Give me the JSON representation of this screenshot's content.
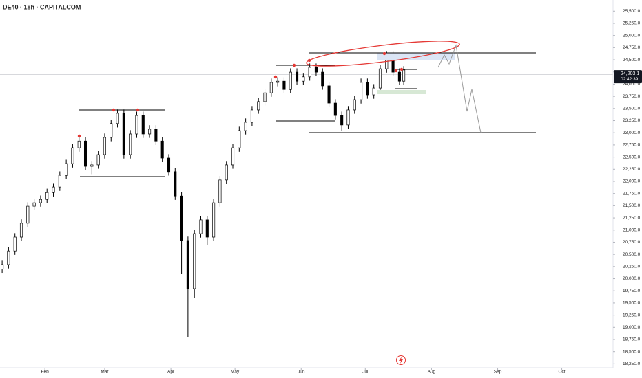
{
  "chart_data": {
    "type": "candlestick",
    "title": "DE40 · 18h · CAPITALCOM",
    "up_color": "#ffffff",
    "down_color": "#000000",
    "edge_color": "#000000",
    "x": [
      12,
      15,
      18,
      21,
      24,
      27,
      30,
      33,
      36,
      39,
      42,
      45,
      48,
      51,
      54,
      57,
      60,
      63,
      66,
      69,
      72,
      75,
      78,
      81,
      84,
      87,
      90,
      93,
      96,
      99,
      102,
      105,
      108,
      111,
      114,
      117,
      120,
      123,
      126,
      129,
      132,
      135,
      138,
      141,
      144,
      147,
      150,
      153,
      156,
      159,
      162,
      165,
      168,
      171,
      174,
      177,
      180,
      183,
      186,
      189,
      192,
      195,
      198,
      200
    ],
    "open": [
      20200,
      20290,
      20570,
      20855,
      21140,
      21490,
      21560,
      21630,
      21770,
      21885,
      22125,
      22365,
      22690,
      22830,
      22310,
      22340,
      22550,
      22905,
      23190,
      23400,
      22550,
      22975,
      23355,
      22975,
      23075,
      22830,
      22480,
      22200,
      21700,
      20785,
      19795,
      20925,
      21210,
      20855,
      21560,
      22030,
      22340,
      22690,
      23045,
      23215,
      23470,
      23640,
      23820,
      24035,
      24060,
      23890,
      24245,
      24060,
      24150,
      24345,
      24245,
      23965,
      23610,
      23355,
      23160,
      23470,
      23680,
      24035,
      23780,
      23920,
      24315,
      24600,
      24245,
      24060
    ],
    "high": [
      20370,
      20650,
      20935,
      21220,
      21570,
      21640,
      21710,
      21850,
      21965,
      22205,
      22445,
      22770,
      22910,
      22910,
      22420,
      22630,
      22985,
      23270,
      23480,
      23480,
      23055,
      23435,
      23435,
      23155,
      23155,
      22910,
      22560,
      22280,
      21780,
      20865,
      21005,
      21290,
      21290,
      21640,
      22110,
      22420,
      22770,
      23125,
      23295,
      23550,
      23720,
      23900,
      24115,
      24140,
      24140,
      24325,
      24325,
      24230,
      24425,
      24425,
      24325,
      24045,
      23690,
      23435,
      23550,
      23760,
      24115,
      24115,
      24000,
      24395,
      24680,
      24680,
      24325,
      24370
    ],
    "low": [
      20120,
      20210,
      20490,
      20775,
      21060,
      21410,
      21480,
      21550,
      21690,
      21805,
      22045,
      22285,
      22610,
      22230,
      22150,
      22260,
      22470,
      22825,
      23110,
      22470,
      22470,
      22895,
      22895,
      22895,
      22750,
      22400,
      22120,
      21620,
      20100,
      18805,
      19600,
      20845,
      20700,
      20775,
      21480,
      21950,
      22260,
      22610,
      22965,
      23135,
      23390,
      23560,
      23740,
      23955,
      23810,
      23810,
      23980,
      23980,
      24070,
      24165,
      23885,
      23530,
      23275,
      23040,
      23080,
      23390,
      23600,
      23700,
      23700,
      23840,
      24235,
      24165,
      23980,
      23980
    ],
    "close": [
      20290,
      20570,
      20855,
      21140,
      21490,
      21560,
      21630,
      21770,
      21885,
      22125,
      22365,
      22690,
      22830,
      22310,
      22340,
      22550,
      22905,
      23190,
      23400,
      22550,
      22975,
      23355,
      22975,
      23075,
      22830,
      22480,
      22200,
      21700,
      20785,
      19795,
      20925,
      21210,
      20855,
      21560,
      22030,
      22340,
      22690,
      23045,
      23215,
      23470,
      23640,
      23820,
      24035,
      24060,
      23890,
      24245,
      24060,
      24150,
      24345,
      24245,
      23965,
      23610,
      23355,
      23160,
      23470,
      23680,
      24035,
      23780,
      23920,
      24315,
      24600,
      24245,
      24060,
      24290
    ],
    "xlim": [
      11,
      298
    ],
    "xticks": [
      {
        "value": 32,
        "label": "Feb"
      },
      {
        "value": 60,
        "label": "Mar"
      },
      {
        "value": 91,
        "label": "Apr"
      },
      {
        "value": 121,
        "label": "May"
      },
      {
        "value": 152,
        "label": "Jun"
      },
      {
        "value": 182,
        "label": "Jul"
      },
      {
        "value": 213,
        "label": "Aug"
      },
      {
        "value": 244,
        "label": "Sep"
      },
      {
        "value": 274,
        "label": "Oct"
      }
    ],
    "ylim": [
      18100,
      25730
    ],
    "yticks": [
      {
        "value": 18250,
        "label": "18,250.0"
      },
      {
        "value": 18500,
        "label": "18,500.0"
      },
      {
        "value": 18750,
        "label": "18,750.0"
      },
      {
        "value": 19000,
        "label": "19,000.0"
      },
      {
        "value": 19250,
        "label": "19,250.0"
      },
      {
        "value": 19500,
        "label": "19,500.0"
      },
      {
        "value": 19750,
        "label": "19,750.0"
      },
      {
        "value": 20000,
        "label": "20,000.0"
      },
      {
        "value": 20250,
        "label": "20,250.0"
      },
      {
        "value": 20500,
        "label": "20,500.0"
      },
      {
        "value": 20750,
        "label": "20,750.0"
      },
      {
        "value": 21000,
        "label": "21,000.0"
      },
      {
        "value": 21250,
        "label": "21,250.0"
      },
      {
        "value": 21500,
        "label": "21,500.0"
      },
      {
        "value": 21750,
        "label": "21,750.0"
      },
      {
        "value": 22000,
        "label": "22,000.0"
      },
      {
        "value": 22250,
        "label": "22,250.0"
      },
      {
        "value": 22500,
        "label": "22,500.0"
      },
      {
        "value": 22750,
        "label": "22,750.0"
      },
      {
        "value": 23000,
        "label": "23,000.0"
      },
      {
        "value": 23250,
        "label": "23,250.0"
      },
      {
        "value": 23500,
        "label": "23,500.0"
      },
      {
        "value": 23750,
        "label": "23,750.0"
      },
      {
        "value": 24000,
        "label": "24,000.0"
      },
      {
        "value": 24250,
        "label": "24,250.0"
      },
      {
        "value": 24500,
        "label": "24,500.0"
      },
      {
        "value": 24750,
        "label": "24,750.0"
      },
      {
        "value": 25000,
        "label": "25,000.0"
      },
      {
        "value": 25250,
        "label": "25,250.0"
      },
      {
        "value": 25500,
        "label": "25,500.0"
      }
    ],
    "last_price": {
      "value": 24203.1,
      "label": "24,203.1"
    },
    "countdown": "02:42:39"
  }
}
